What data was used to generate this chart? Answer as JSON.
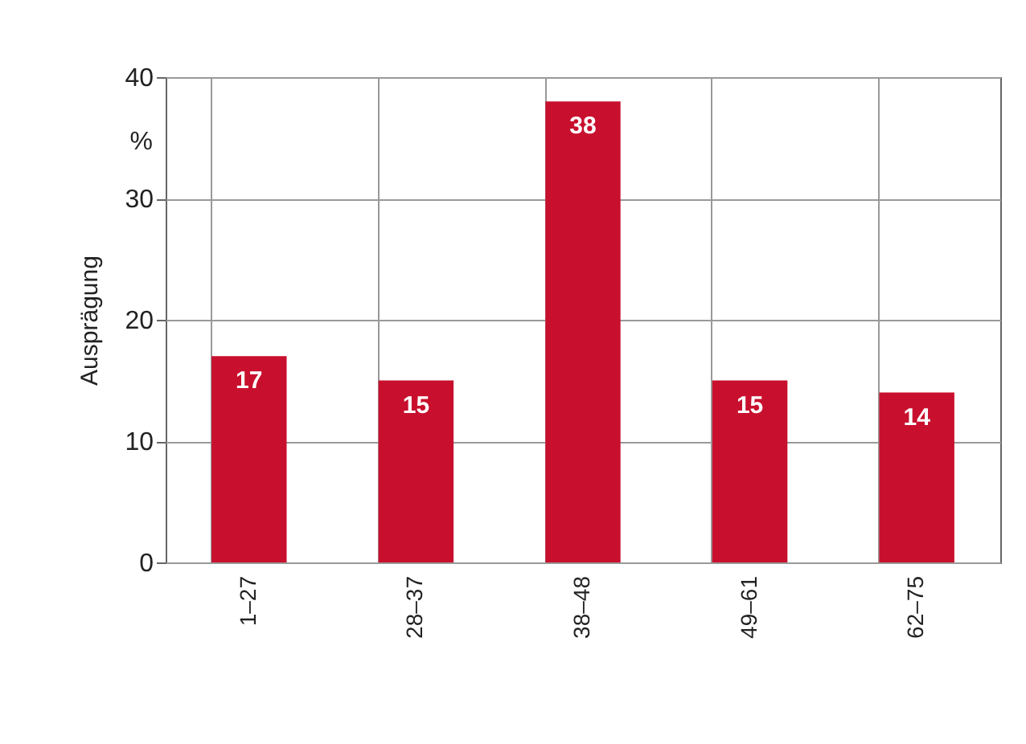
{
  "chart_data": {
    "type": "bar",
    "ylabel": "Ausprägung",
    "categories": [
      "1–27",
      "28–37",
      "38–48",
      "49–61",
      "62–75"
    ],
    "values": [
      17,
      15,
      38,
      15,
      14
    ],
    "color": "#c8102e",
    "ylim": [
      0,
      40
    ],
    "yticks": [
      0,
      10,
      20,
      30,
      40
    ],
    "grid": true,
    "data_labels": true,
    "annotations": [
      "%"
    ]
  }
}
